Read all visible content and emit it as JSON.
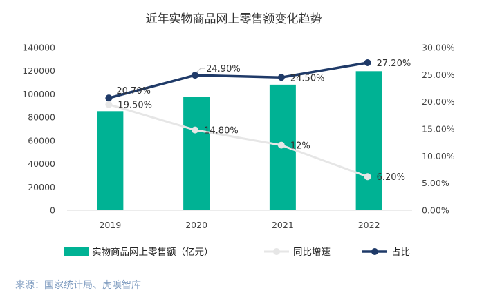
{
  "chart_data": {
    "type": "bar+line",
    "title": "近年实物商品网上零售额变化趋势",
    "categories": [
      "2019",
      "2020",
      "2021",
      "2022"
    ],
    "series": [
      {
        "name": "实物商品网上零售额（亿元）",
        "type": "bar",
        "axis": "left",
        "color": "#00b294",
        "values": [
          85239,
          97590,
          108042,
          119642
        ]
      },
      {
        "name": "同比增速",
        "type": "line",
        "axis": "right",
        "color": "#e6e6e6",
        "values": [
          19.5,
          14.8,
          12,
          6.2
        ],
        "labels": [
          "19.50%",
          "14.80%",
          "12%",
          "6.20%"
        ]
      },
      {
        "name": "占比",
        "type": "line",
        "axis": "right",
        "color": "#1f3a68",
        "values": [
          20.7,
          24.9,
          24.5,
          27.2
        ],
        "labels": [
          "20.70%",
          "24.90%",
          "24.50%",
          "27.20%"
        ]
      }
    ],
    "y_left": {
      "lim": [
        0,
        140000
      ],
      "ticks": [
        "0",
        "20000",
        "40000",
        "60000",
        "80000",
        "100000",
        "120000",
        "140000"
      ]
    },
    "y_right": {
      "lim": [
        0,
        30
      ],
      "ticks": [
        "0.00%",
        "5.00%",
        "10.00%",
        "15.00%",
        "20.00%",
        "25.00%",
        "30.00%"
      ]
    },
    "grid": false,
    "legend_position": "bottom"
  },
  "source": "来源：国家统计局、虎嗅智库"
}
